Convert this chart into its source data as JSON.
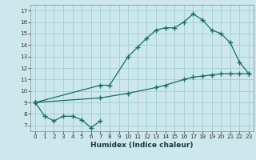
{
  "xlabel": "Humidex (Indice chaleur)",
  "bg_color": "#cce8ec",
  "grid_color": "#9ecdd4",
  "line_color": "#1a6b6b",
  "xlim": [
    -0.5,
    23.5
  ],
  "ylim": [
    6.5,
    17.5
  ],
  "xticks": [
    0,
    1,
    2,
    3,
    4,
    5,
    6,
    7,
    8,
    9,
    10,
    11,
    12,
    13,
    14,
    15,
    16,
    17,
    18,
    19,
    20,
    21,
    22,
    23
  ],
  "yticks": [
    7,
    8,
    9,
    10,
    11,
    12,
    13,
    14,
    15,
    16,
    17
  ],
  "line_a_x": [
    0,
    1,
    2,
    3,
    4,
    5,
    6,
    7
  ],
  "line_a_y": [
    9.0,
    7.8,
    7.4,
    7.8,
    7.8,
    7.5,
    6.8,
    7.4
  ],
  "line_b_x": [
    0,
    7,
    8,
    10,
    11,
    12,
    13,
    14,
    15,
    16,
    17,
    18,
    19,
    20,
    21,
    22,
    23
  ],
  "line_b_y": [
    9.0,
    10.5,
    10.5,
    13.0,
    13.8,
    14.6,
    15.3,
    15.5,
    15.5,
    16.0,
    16.7,
    16.2,
    15.3,
    15.0,
    14.2,
    12.5,
    11.5
  ],
  "line_c_x": [
    0,
    7,
    10,
    13,
    14,
    16,
    17,
    18,
    19,
    20,
    21,
    22,
    23
  ],
  "line_c_y": [
    9.0,
    9.4,
    9.8,
    10.3,
    10.5,
    11.0,
    11.2,
    11.3,
    11.4,
    11.5,
    11.5,
    11.5,
    11.5
  ],
  "xlabel_fontsize": 6.5,
  "tick_fontsize": 5.2
}
